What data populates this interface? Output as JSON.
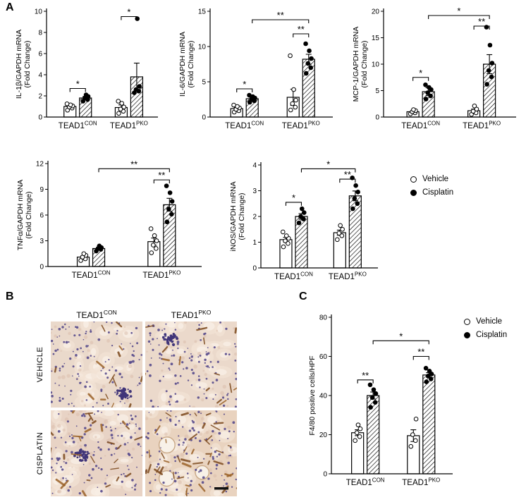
{
  "figure": {
    "panel_a_label": "A",
    "panel_b_label": "B",
    "panel_c_label": "C"
  },
  "legend": {
    "vehicle": "Vehicle",
    "cisplatin": "Cisplatin"
  },
  "chart_data": [
    {
      "id": "il1b",
      "type": "bar",
      "ylabel": [
        "IL-1β/GAPDH mRNA",
        "(Fold Change)"
      ],
      "ylim": [
        0,
        10
      ],
      "yticks": [
        0,
        2,
        4,
        6,
        8,
        10
      ],
      "groups": [
        {
          "base": "TEAD1",
          "sup": "CON"
        },
        {
          "base": "TEAD1",
          "sup": "PKO"
        }
      ],
      "series": [
        {
          "name": "Vehicle",
          "style": "open",
          "means": [
            1.0,
            0.9
          ],
          "errors": [
            0.12,
            0.25
          ],
          "points": [
            [
              0.65,
              0.85,
              0.95,
              1.05,
              1.15,
              1.25
            ],
            [
              0.35,
              0.55,
              0.75,
              0.95,
              1.3,
              1.5
            ]
          ]
        },
        {
          "name": "Cisplatin",
          "style": "hatched",
          "means": [
            1.8,
            3.8
          ],
          "errors": [
            0.15,
            1.3
          ],
          "points": [
            [
              1.5,
              1.65,
              1.8,
              1.95,
              2.1
            ],
            [
              2.3,
              2.45,
              2.6,
              2.9,
              9.3
            ]
          ]
        }
      ],
      "significance": [
        {
          "from": [
            0,
            0
          ],
          "to": [
            0,
            1
          ],
          "y": 2.7,
          "label": "*"
        },
        {
          "from": [
            1,
            0
          ],
          "to": [
            1,
            1
          ],
          "y": 9.5,
          "label": "*"
        }
      ]
    },
    {
      "id": "il6",
      "type": "bar",
      "ylabel": [
        "IL-6/GAPDH mRNA",
        "(Fold Change)"
      ],
      "ylim": [
        0,
        15
      ],
      "yticks": [
        0,
        5,
        10,
        15
      ],
      "groups": [
        {
          "base": "TEAD1",
          "sup": "CON"
        },
        {
          "base": "TEAD1",
          "sup": "PKO"
        }
      ],
      "series": [
        {
          "name": "Vehicle",
          "style": "open",
          "means": [
            1.2,
            2.8
          ],
          "errors": [
            0.15,
            1.15
          ],
          "points": [
            [
              0.7,
              0.9,
              1.1,
              1.3,
              1.5,
              1.7
            ],
            [
              1.0,
              1.4,
              1.9,
              2.4,
              3.9,
              8.7
            ]
          ]
        },
        {
          "name": "Cisplatin",
          "style": "hatched",
          "means": [
            2.6,
            8.2
          ],
          "errors": [
            0.18,
            0.7
          ],
          "points": [
            [
              2.1,
              2.3,
              2.5,
              2.7,
              2.9,
              3.1
            ],
            [
              6.2,
              7.0,
              7.6,
              8.3,
              9.4,
              10.4
            ]
          ]
        }
      ],
      "significance": [
        {
          "from": [
            0,
            0
          ],
          "to": [
            0,
            1
          ],
          "y": 4.0,
          "label": "*"
        },
        {
          "from": [
            0,
            1
          ],
          "to": [
            1,
            1
          ],
          "y": 13.8,
          "label": "**"
        },
        {
          "from": [
            1,
            0
          ],
          "to": [
            1,
            1
          ],
          "y": 11.8,
          "label": "**"
        }
      ]
    },
    {
      "id": "mcp1",
      "type": "bar",
      "ylabel": [
        "MCP-1/GAPDH mRNA",
        "(Fold Change)"
      ],
      "ylim": [
        0,
        20
      ],
      "yticks": [
        0,
        5,
        10,
        15,
        20
      ],
      "groups": [
        {
          "base": "TEAD1",
          "sup": "CON"
        },
        {
          "base": "TEAD1",
          "sup": "PKO"
        }
      ],
      "series": [
        {
          "name": "Vehicle",
          "style": "open",
          "means": [
            1.0,
            1.2
          ],
          "errors": [
            0.15,
            0.3
          ],
          "points": [
            [
              0.6,
              0.8,
              1.0,
              1.2,
              1.4
            ],
            [
              0.5,
              0.8,
              1.1,
              1.5,
              2.1
            ]
          ]
        },
        {
          "name": "Cisplatin",
          "style": "hatched",
          "means": [
            4.8,
            10.0
          ],
          "errors": [
            0.75,
            1.8
          ],
          "points": [
            [
              3.4,
              4.0,
              4.6,
              5.2,
              5.6,
              6.1
            ],
            [
              6.2,
              7.6,
              8.8,
              10.2,
              13.6,
              17.0
            ]
          ]
        }
      ],
      "significance": [
        {
          "from": [
            0,
            0
          ],
          "to": [
            0,
            1
          ],
          "y": 7.5,
          "label": "*"
        },
        {
          "from": [
            0,
            1
          ],
          "to": [
            1,
            1
          ],
          "y": 19.2,
          "label": "*"
        },
        {
          "from": [
            1,
            0
          ],
          "to": [
            1,
            1
          ],
          "y": 17.2,
          "label": "**"
        }
      ]
    },
    {
      "id": "tnfa",
      "type": "bar",
      "ylabel": [
        "TNFα/GAPDH mRNA",
        "(Fold Change)"
      ],
      "ylim": [
        0,
        12
      ],
      "yticks": [
        0,
        3,
        6,
        9,
        12
      ],
      "groups": [
        {
          "base": "TEAD1",
          "sup": "CON"
        },
        {
          "base": "TEAD1",
          "sup": "PKO"
        }
      ],
      "series": [
        {
          "name": "Vehicle",
          "style": "open",
          "means": [
            1.1,
            2.9
          ],
          "errors": [
            0.13,
            0.42
          ],
          "points": [
            [
              0.7,
              0.9,
              1.1,
              1.3,
              1.5
            ],
            [
              1.6,
              2.1,
              2.5,
              3.0,
              3.6,
              4.4
            ]
          ]
        },
        {
          "name": "Cisplatin",
          "style": "hatched",
          "means": [
            2.1,
            7.2
          ],
          "errors": [
            0.11,
            0.75
          ],
          "points": [
            [
              1.8,
              2.0,
              2.1,
              2.2,
              2.4
            ],
            [
              5.2,
              6.1,
              6.7,
              7.6,
              8.6,
              9.4
            ]
          ]
        }
      ],
      "significance": [
        {
          "from": [
            0,
            1
          ],
          "to": [
            1,
            1
          ],
          "y": 11.4,
          "label": "**"
        },
        {
          "from": [
            1,
            0
          ],
          "to": [
            1,
            1
          ],
          "y": 10.1,
          "label": "**"
        }
      ]
    },
    {
      "id": "inos",
      "type": "bar",
      "ylabel": [
        "iNOS/GAPDH mRNA",
        "(Fold Change)"
      ],
      "ylim": [
        0,
        4
      ],
      "yticks": [
        0,
        1,
        2,
        3,
        4
      ],
      "groups": [
        {
          "base": "TEAD1",
          "sup": "CON"
        },
        {
          "base": "TEAD1",
          "sup": "PKO"
        }
      ],
      "series": [
        {
          "name": "Vehicle",
          "style": "open",
          "means": [
            1.1,
            1.37
          ],
          "errors": [
            0.09,
            0.1
          ],
          "points": [
            [
              0.82,
              0.95,
              1.05,
              1.15,
              1.25,
              1.4
            ],
            [
              1.1,
              1.25,
              1.35,
              1.5,
              1.65
            ]
          ]
        },
        {
          "name": "Cisplatin",
          "style": "hatched",
          "means": [
            2.0,
            2.8
          ],
          "errors": [
            0.11,
            0.19
          ],
          "points": [
            [
              1.75,
              1.9,
              2.0,
              2.15,
              2.3
            ],
            [
              2.3,
              2.5,
              2.7,
              2.95,
              3.2,
              3.5
            ]
          ]
        }
      ],
      "significance": [
        {
          "from": [
            0,
            0
          ],
          "to": [
            0,
            1
          ],
          "y": 2.55,
          "label": "*"
        },
        {
          "from": [
            0,
            1
          ],
          "to": [
            1,
            1
          ],
          "y": 3.85,
          "label": "*"
        },
        {
          "from": [
            1,
            0
          ],
          "to": [
            1,
            1
          ],
          "y": 3.45,
          "label": "**"
        }
      ]
    },
    {
      "id": "f480",
      "type": "bar",
      "ylabel": [
        "F4/80 positive cells/HPF"
      ],
      "ylim": [
        0,
        80
      ],
      "yticks": [
        0,
        20,
        40,
        60,
        80
      ],
      "groups": [
        {
          "base": "TEAD1",
          "sup": "CON"
        },
        {
          "base": "TEAD1",
          "sup": "PKO"
        }
      ],
      "series": [
        {
          "name": "Vehicle",
          "style": "open",
          "means": [
            21,
            19.5
          ],
          "errors": [
            1.5,
            3
          ],
          "points": [
            [
              17,
              19,
              21,
              23,
              25
            ],
            [
              14,
              17,
              20,
              28
            ]
          ]
        },
        {
          "name": "Cisplatin",
          "style": "hatched",
          "means": [
            40,
            50.5
          ],
          "errors": [
            1.8,
            1.2
          ],
          "points": [
            [
              34,
              36.5,
              39,
              41,
              43,
              45.5
            ],
            [
              47,
              48.5,
              50,
              51,
              52.5,
              54
            ]
          ]
        }
      ],
      "significance": [
        {
          "from": [
            0,
            0
          ],
          "to": [
            0,
            1
          ],
          "y": 48,
          "label": "**"
        },
        {
          "from": [
            0,
            1
          ],
          "to": [
            1,
            1
          ],
          "y": 68,
          "label": "*"
        },
        {
          "from": [
            1,
            0
          ],
          "to": [
            1,
            1
          ],
          "y": 60,
          "label": "**"
        }
      ]
    }
  ],
  "histology": {
    "col_headers": [
      {
        "base": "TEAD1",
        "sup": "CON"
      },
      {
        "base": "TEAD1",
        "sup": "PKO"
      }
    ],
    "row_labels": [
      "VEHICLE",
      "CISPLATIN"
    ],
    "colors": {
      "nuclei": "#564a8c",
      "nuclei_dense": "#403579",
      "stain_brown": "#7d4a1e",
      "stain_light": "#9a6228",
      "tissue_light": "#f2e4d6",
      "tissue_lumen": "#f9f1e8"
    },
    "images": [
      {
        "row": "VEHICLE",
        "col": "TEAD1CON",
        "stain_level": 1,
        "bg": "#ead9cb",
        "scale_bar": false
      },
      {
        "row": "VEHICLE",
        "col": "TEAD1PKO",
        "stain_level": 1,
        "bg": "#ebd9cb",
        "scale_bar": false
      },
      {
        "row": "CISPLATIN",
        "col": "TEAD1CON",
        "stain_level": 2,
        "bg": "#e8d3c5",
        "scale_bar": false
      },
      {
        "row": "CISPLATIN",
        "col": "TEAD1PKO",
        "stain_level": 3,
        "bg": "#e9d3bf",
        "scale_bar": true
      }
    ]
  }
}
